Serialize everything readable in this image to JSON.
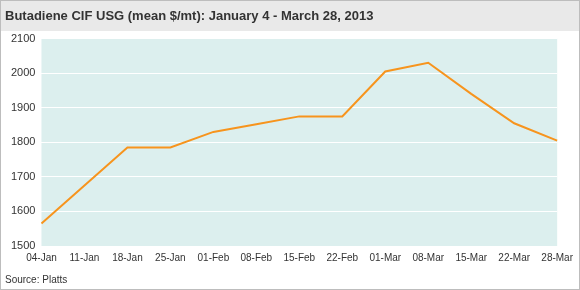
{
  "chart_data": {
    "type": "line",
    "title": "Butadiene CIF USG (mean $/mt): January 4 - March 28, 2013",
    "source": "Source: Platts",
    "categories": [
      "04-Jan",
      "11-Jan",
      "18-Jan",
      "25-Jan",
      "01-Feb",
      "08-Feb",
      "15-Feb",
      "22-Feb",
      "01-Mar",
      "08-Mar",
      "15-Mar",
      "22-Mar",
      "28-Mar"
    ],
    "values": [
      1565,
      1675,
      1785,
      1785,
      1830,
      1852,
      1875,
      1875,
      2005,
      2030,
      1940,
      1855,
      1805
    ],
    "color": "#f7941d",
    "ylim": [
      1500,
      2100
    ],
    "yticks": [
      1500,
      1600,
      1700,
      1800,
      1900,
      2000,
      2100
    ],
    "grid": true
  }
}
